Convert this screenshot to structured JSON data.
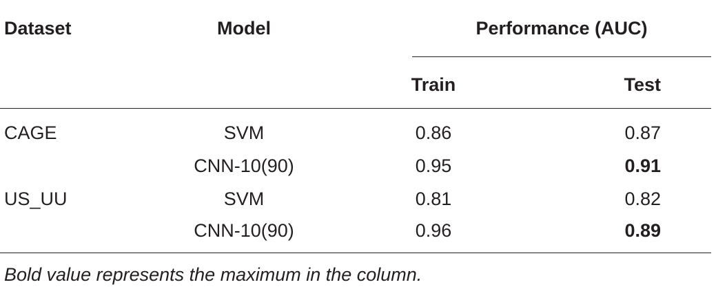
{
  "table": {
    "headers": {
      "dataset": "Dataset",
      "model": "Model",
      "performance": "Performance (AUC)",
      "train": "Train",
      "test": "Test"
    },
    "rows": [
      {
        "dataset": "CAGE",
        "model": "SVM",
        "train": "0.86",
        "test": "0.87",
        "test_bold": false
      },
      {
        "dataset": "",
        "model": "CNN-10(90)",
        "train": "0.95",
        "test": "0.91",
        "test_bold": true
      },
      {
        "dataset": "US_UU",
        "model": "SVM",
        "train": "0.81",
        "test": "0.82",
        "test_bold": false
      },
      {
        "dataset": "",
        "model": "CNN-10(90)",
        "train": "0.96",
        "test": "0.89",
        "test_bold": true
      }
    ]
  },
  "footnote": "Bold value represents the maximum in the column."
}
